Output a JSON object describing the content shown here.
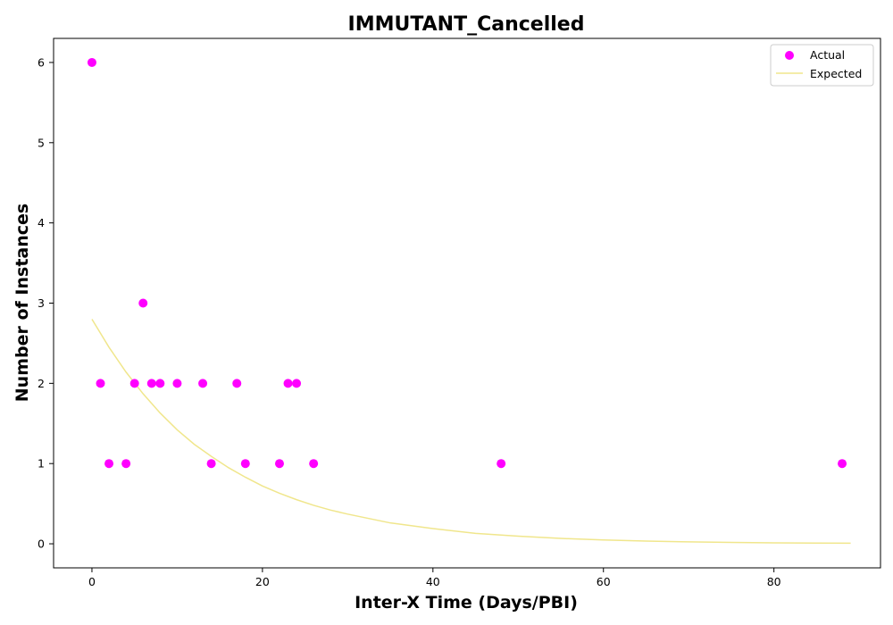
{
  "chart_data": {
    "type": "scatter",
    "title": "IMMUTANT_Cancelled",
    "xlabel": "Inter-X Time (Days/PBI)",
    "ylabel": "Number of Instances",
    "xlim": [
      -4.5,
      92.5
    ],
    "ylim": [
      -0.3,
      6.3
    ],
    "xticks": [
      0,
      20,
      40,
      60,
      80
    ],
    "yticks": [
      0,
      1,
      2,
      3,
      4,
      5,
      6
    ],
    "grid": false,
    "legend_position": "top-right",
    "series": [
      {
        "name": "Actual",
        "kind": "scatter",
        "color": "#ff00ff",
        "x": [
          0,
          1,
          2,
          4,
          5,
          6,
          7,
          8,
          10,
          13,
          14,
          17,
          18,
          22,
          23,
          24,
          26,
          48,
          88
        ],
        "y": [
          6,
          2,
          1,
          1,
          2,
          3,
          2,
          2,
          2,
          2,
          1,
          2,
          1,
          1,
          2,
          2,
          1,
          1,
          1
        ]
      },
      {
        "name": "Expected",
        "kind": "line",
        "color": "#f0e68c",
        "x": [
          0,
          2,
          4,
          6,
          8,
          10,
          12,
          14,
          16,
          18,
          20,
          22,
          24,
          26,
          28,
          30,
          35,
          40,
          45,
          50,
          55,
          60,
          65,
          70,
          75,
          80,
          85,
          89
        ],
        "y": [
          2.8,
          2.45,
          2.14,
          1.87,
          1.63,
          1.42,
          1.24,
          1.09,
          0.95,
          0.83,
          0.72,
          0.63,
          0.55,
          0.48,
          0.42,
          0.37,
          0.26,
          0.19,
          0.13,
          0.095,
          0.067,
          0.048,
          0.034,
          0.024,
          0.017,
          0.012,
          0.009,
          0.007
        ]
      }
    ]
  }
}
